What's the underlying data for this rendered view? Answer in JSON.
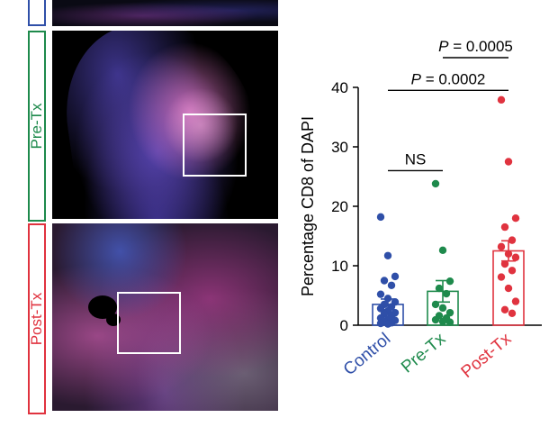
{
  "panels": {
    "pre_label": "Pre-Tx",
    "post_label": "Post-Tx",
    "pre_color": "#1e8a4c",
    "post_color": "#e0333f",
    "top_partial_color": "#2f4fa8"
  },
  "chart_data": {
    "type": "scatter",
    "ylabel": "Percentage CD8 of DAPI",
    "xlabel": "",
    "ylim": [
      0,
      40
    ],
    "yticks": [
      0,
      10,
      20,
      30,
      40
    ],
    "categories": [
      "Control",
      "Pre-Tx",
      "Post-Tx"
    ],
    "colors": [
      "#2f4fa8",
      "#1e8a4c",
      "#e0333f"
    ],
    "bar_means": [
      3.5,
      5.7,
      12.5
    ],
    "error_sem": [
      0.9,
      1.8,
      1.7
    ],
    "series": [
      {
        "values": [
          18.2,
          11.7,
          8.2,
          7.5,
          6.7,
          5.2,
          4.5,
          3.9,
          3.5,
          3.1,
          2.8,
          2.4,
          2.1,
          1.9,
          1.6,
          1.2,
          1.0,
          0.8,
          0.6,
          0.4,
          0.3,
          0.2
        ]
      },
      {
        "values": [
          23.8,
          12.6,
          7.4,
          6.2,
          5.3,
          3.5,
          2.9,
          2.1,
          1.6,
          1.2,
          0.9,
          0.6,
          0.5
        ]
      },
      {
        "values": [
          37.9,
          27.5,
          18.0,
          16.5,
          14.3,
          13.2,
          12.0,
          11.4,
          10.3,
          9.2,
          8.1,
          6.2,
          4.0,
          2.6,
          2.0
        ]
      }
    ],
    "annotations": [
      {
        "text": "NS",
        "from": 0,
        "to": 1,
        "y": 26
      },
      {
        "text": "P = 0.0002",
        "from": 0,
        "to": 2,
        "y": 39.5
      },
      {
        "text": "P = 0.0005",
        "from": 1,
        "to": 2,
        "y": 45
      }
    ]
  }
}
